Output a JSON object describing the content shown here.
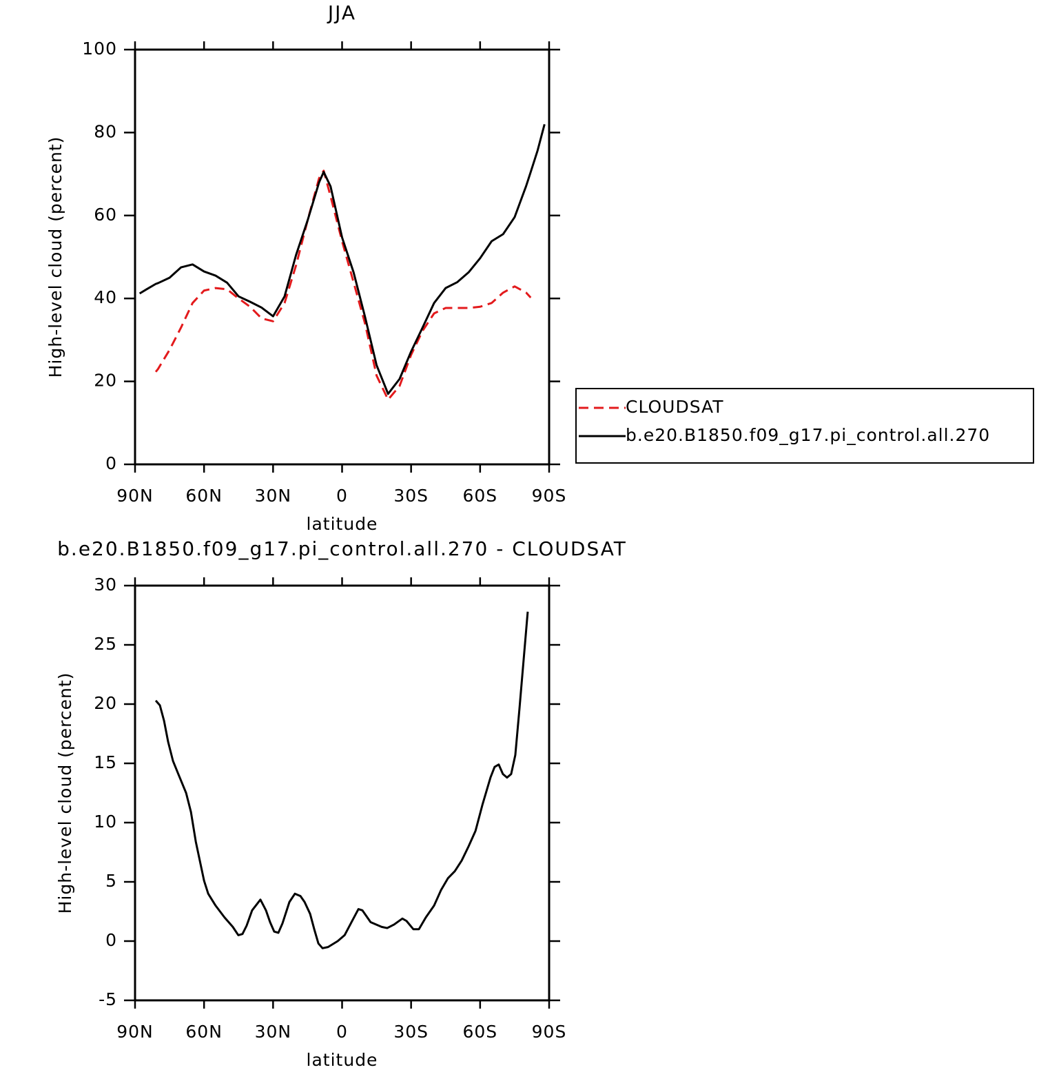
{
  "chart_data": [
    {
      "type": "line",
      "title": "JJA",
      "x_label": "latitude",
      "y_label": "High-level cloud (percent)",
      "x": [
        88,
        85,
        81,
        80,
        75,
        70,
        65,
        60,
        55,
        50,
        45,
        40,
        35,
        30,
        25,
        20,
        15,
        10,
        8,
        5,
        0,
        -5,
        -10,
        -15,
        -20,
        -25,
        -30,
        -35,
        -40,
        -45,
        -50,
        -55,
        -60,
        -65,
        -70,
        -75,
        -80,
        -82,
        -85,
        -88
      ],
      "series": [
        {
          "name": "CLOUDSAT",
          "color": "#e31a1c",
          "dashed": true,
          "values": [
            null,
            null,
            22.3,
            23,
            27.6,
            33,
            38.9,
            41.9,
            42.5,
            42.2,
            40,
            38,
            35.2,
            34.5,
            38.9,
            48,
            58.8,
            69,
            70.8,
            64.6,
            53.8,
            43.9,
            33.9,
            21.4,
            15.6,
            18.9,
            26.4,
            32.2,
            36.4,
            37.7,
            37.7,
            37.7,
            38,
            38.9,
            41.4,
            42.9,
            41.4,
            40.2,
            null,
            null
          ]
        },
        {
          "name": "b.e20.B1850.f09_g17.pi_control.all.270",
          "color": "#000000",
          "dashed": false,
          "values": [
            41.2,
            42.2,
            43.5,
            43.7,
            45,
            47.5,
            48.2,
            46.5,
            45.5,
            43.8,
            40.5,
            39.2,
            37.8,
            35.7,
            40.5,
            50.5,
            58.8,
            68,
            70.5,
            67,
            54.7,
            46.3,
            35.5,
            23.9,
            17,
            20.6,
            27.2,
            33,
            38.9,
            42.5,
            43.9,
            46.3,
            49.7,
            53.8,
            55.5,
            59.6,
            67.1,
            70.5,
            75.7,
            82
          ]
        }
      ],
      "xlim": [
        90,
        -90
      ],
      "xticks": [
        {
          "value": 90,
          "label": "90N"
        },
        {
          "value": 60,
          "label": "60N"
        },
        {
          "value": 30,
          "label": "30N"
        },
        0,
        {
          "value": -30,
          "label": "30S"
        },
        {
          "value": -60,
          "label": "60S"
        },
        {
          "value": -90,
          "label": "90S"
        }
      ],
      "ylim": [
        0,
        100
      ],
      "yticks": [
        0,
        20,
        40,
        60,
        80,
        100
      ],
      "legend": "right"
    },
    {
      "type": "line",
      "title": "b.e20.B1850.f09_g17.pi_control.all.270 - CLOUDSAT",
      "x_label": "latitude",
      "y_label": "High-level cloud (percent)",
      "x": [
        81.0,
        79.2,
        77.4,
        75.6,
        73.5,
        71.4,
        67.8,
        65.7,
        63.6,
        60.0,
        58.2,
        55.0,
        51.1,
        47.5,
        45.1,
        43.3,
        41.5,
        39.1,
        35.5,
        33.1,
        31.3,
        29.5,
        27.7,
        25.9,
        22.9,
        20.5,
        18.1,
        16.3,
        13.9,
        12.1,
        10.3,
        8.5,
        6.1,
        1.9,
        -1.1,
        -4.1,
        -7.1,
        -8.8,
        -12.4,
        -17.2,
        -19.6,
        -22.6,
        -26.2,
        -28.0,
        -31.0,
        -33.4,
        -36.4,
        -40.0,
        -43.0,
        -46.0,
        -49.0,
        -52.0,
        -55.0,
        -58.0,
        -61.0,
        -64.5,
        -66.3,
        -68.1,
        -69.9,
        -71.7,
        -73.5,
        -75.3,
        -77.1,
        -78.9,
        -80.7
      ],
      "values": [
        20.3,
        19.9,
        18.6,
        16.8,
        15.2,
        14.2,
        12.5,
        10.9,
        8.4,
        5.1,
        4.0,
        3.0,
        2.0,
        1.2,
        0.5,
        0.6,
        1.3,
        2.6,
        3.5,
        2.6,
        1.6,
        0.8,
        0.7,
        1.5,
        3.3,
        4.0,
        3.8,
        3.3,
        2.3,
        1.0,
        -0.2,
        -0.6,
        -0.5,
        0,
        0.5,
        1.6,
        2.7,
        2.6,
        1.6,
        1.2,
        1.1,
        1.4,
        1.9,
        1.7,
        1.0,
        1.0,
        2.0,
        3.0,
        4.3,
        5.3,
        5.9,
        6.8,
        8.0,
        9.3,
        11.5,
        13.8,
        14.7,
        14.9,
        14.1,
        13.8,
        14.1,
        15.7,
        19.6,
        23.7,
        27.8
      ],
      "color": "#000000",
      "xlim": [
        90,
        -90
      ],
      "xticks": [
        {
          "value": 90,
          "label": "90N"
        },
        {
          "value": 60,
          "label": "60N"
        },
        {
          "value": 30,
          "label": "30N"
        },
        0,
        {
          "value": -30,
          "label": "30S"
        },
        {
          "value": -60,
          "label": "60S"
        },
        {
          "value": -90,
          "label": "90S"
        }
      ],
      "ylim": [
        -5,
        30
      ],
      "yticks": [
        -5,
        0,
        5,
        10,
        15,
        20,
        25,
        30
      ]
    }
  ]
}
